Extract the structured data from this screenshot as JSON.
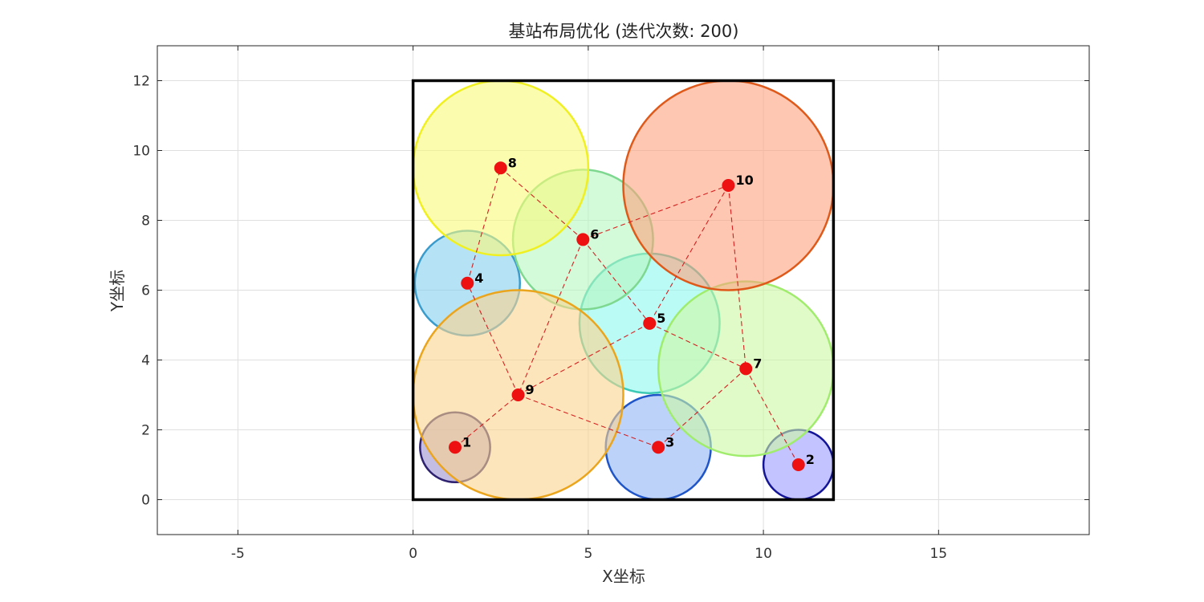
{
  "chart_data": {
    "type": "scatter",
    "title": "基站布局优化 (迭代次数: 200)",
    "xlabel": "X坐标",
    "ylabel": "Y坐标",
    "xlim": [
      -7.3,
      19.3
    ],
    "ylim": [
      -1,
      13
    ],
    "xticks": [
      -5,
      0,
      5,
      10,
      15
    ],
    "yticks": [
      0,
      2,
      4,
      6,
      8,
      10,
      12
    ],
    "grid": true,
    "region": {
      "x": [
        0,
        12
      ],
      "y": [
        0,
        12
      ]
    },
    "stations": [
      {
        "id": "1",
        "x": 1.2,
        "y": 1.5,
        "r": 1.0,
        "fill": "#9b8fd0",
        "stroke": "#2e2170"
      },
      {
        "id": "2",
        "x": 11.0,
        "y": 1.0,
        "r": 1.0,
        "fill": "#9b9bff",
        "stroke": "#151598"
      },
      {
        "id": "3",
        "x": 7.0,
        "y": 1.5,
        "r": 1.5,
        "fill": "#8fb4f5",
        "stroke": "#1f55c8"
      },
      {
        "id": "4",
        "x": 1.55,
        "y": 6.2,
        "r": 1.5,
        "fill": "#85cff0",
        "stroke": "#3a9ccc"
      },
      {
        "id": "5",
        "x": 6.75,
        "y": 5.05,
        "r": 2.0,
        "fill": "#8ef8f0",
        "stroke": "#3ec9b4"
      },
      {
        "id": "6",
        "x": 4.85,
        "y": 7.45,
        "r": 2.0,
        "fill": "#b5f6c0",
        "stroke": "#7ed890"
      },
      {
        "id": "7",
        "x": 9.5,
        "y": 3.75,
        "r": 2.5,
        "fill": "#cdf8a4",
        "stroke": "#a0ec6c"
      },
      {
        "id": "8",
        "x": 2.5,
        "y": 9.5,
        "r": 2.5,
        "fill": "#fafa7a",
        "stroke": "#f0f020"
      },
      {
        "id": "9",
        "x": 3.0,
        "y": 3.0,
        "r": 3.0,
        "fill": "#fbd48e",
        "stroke": "#eba51c"
      },
      {
        "id": "10",
        "x": 9.0,
        "y": 9.0,
        "r": 3.0,
        "fill": "#fda27e",
        "stroke": "#df5a1a"
      }
    ],
    "links": [
      [
        "1",
        "9"
      ],
      [
        "9",
        "4"
      ],
      [
        "4",
        "8"
      ],
      [
        "8",
        "6"
      ],
      [
        "6",
        "9"
      ],
      [
        "9",
        "5"
      ],
      [
        "6",
        "5"
      ],
      [
        "6",
        "10"
      ],
      [
        "10",
        "5"
      ],
      [
        "10",
        "7"
      ],
      [
        "5",
        "7"
      ],
      [
        "7",
        "3"
      ],
      [
        "3",
        "9"
      ],
      [
        "7",
        "2"
      ]
    ],
    "colors": {
      "node": "#ee1111",
      "link": "#d62020",
      "region_border": "#000000",
      "circle_fill_opacity": 0.6
    }
  }
}
